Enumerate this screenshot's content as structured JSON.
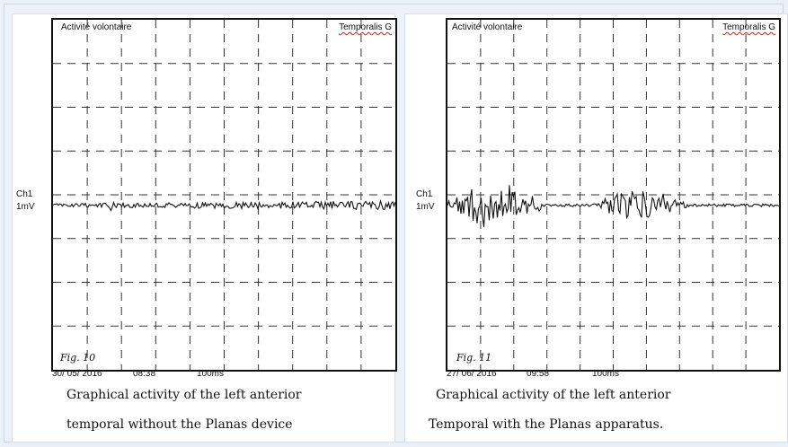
{
  "panels": [
    {
      "scope_title": "Activité volontaire",
      "channel_name": "Temporalis G",
      "channel_label": "Ch1",
      "scale_label": "1mV",
      "fig_label": "Fig. 10",
      "date": "30/ 05/ 2016",
      "time": "08:38",
      "timebase": "100ms",
      "caption_line1": "Graphical activity of the left anterior",
      "caption_line2": "temporal without the Planas device",
      "signal": {
        "bursts": [],
        "baseline_noise": "moderate"
      }
    },
    {
      "scope_title": "Activité volontaire",
      "channel_name": "Temporalis G",
      "channel_label": "Ch1",
      "scale_label": "1mV",
      "fig_label": "Fig. 11",
      "date": "27/ 06/ 2016",
      "time": "09:58",
      "timebase": "100ms",
      "caption_line1": "Graphical activity of the left anterior",
      "caption_line2": "Temporal with the Planas apparatus.",
      "signal": {
        "bursts": [
          "early",
          "late"
        ],
        "baseline_noise": "low"
      }
    }
  ]
}
